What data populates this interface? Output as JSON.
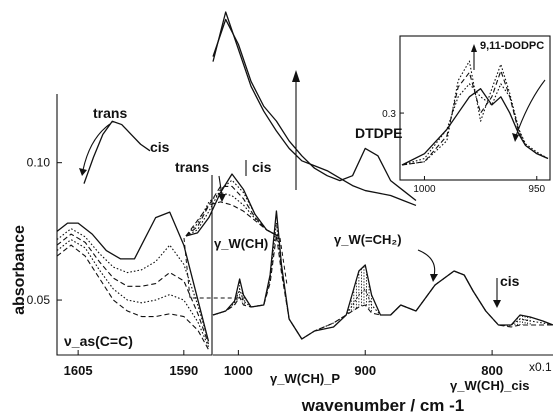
{
  "chart_data": [
    {
      "type": "line",
      "xlabel": "",
      "ylabel": "absorbance",
      "xlim": [
        1608,
        1586
      ],
      "ylim": [
        0.03,
        0.125
      ],
      "x_ticks": [
        1605,
        1590
      ],
      "y_ticks": [
        0.05,
        0.1
      ],
      "y_tick_labels": [
        "0.05",
        "0.10"
      ],
      "series": [
        {
          "x": [
            1608,
            1606.5,
            1605,
            1603,
            1601,
            1599,
            1597,
            1596,
            1594,
            1592,
            1590,
            1588,
            1586.5
          ],
          "values": [
            0.075,
            0.078,
            0.078,
            0.074,
            0.068,
            0.065,
            0.065,
            0.07,
            0.08,
            0.082,
            0.07,
            0.05,
            0.035
          ]
        },
        {
          "x": [
            1608,
            1606,
            1604,
            1602,
            1600,
            1598,
            1596,
            1594,
            1592,
            1590,
            1588,
            1586.5
          ],
          "values": [
            0.072,
            0.076,
            0.073,
            0.067,
            0.062,
            0.06,
            0.061,
            0.064,
            0.07,
            0.063,
            0.048,
            0.035
          ]
        },
        {
          "x": [
            1608,
            1606,
            1604,
            1602,
            1600,
            1598,
            1596,
            1594,
            1592,
            1590,
            1588,
            1586.5
          ],
          "values": [
            0.07,
            0.074,
            0.071,
            0.064,
            0.058,
            0.055,
            0.055,
            0.056,
            0.06,
            0.057,
            0.045,
            0.034
          ]
        },
        {
          "x": [
            1608,
            1606,
            1604,
            1602,
            1600,
            1598,
            1596,
            1594,
            1592,
            1590,
            1588,
            1586.5
          ],
          "values": [
            0.068,
            0.072,
            0.069,
            0.061,
            0.054,
            0.05,
            0.049,
            0.05,
            0.052,
            0.05,
            0.042,
            0.033
          ]
        },
        {
          "x": [
            1608,
            1606,
            1604,
            1602,
            1600,
            1598,
            1596,
            1594,
            1592,
            1590,
            1588,
            1586.5
          ],
          "values": [
            0.066,
            0.07,
            0.066,
            0.058,
            0.05,
            0.046,
            0.044,
            0.044,
            0.045,
            0.044,
            0.039,
            0.032
          ]
        }
      ],
      "annotations": [
        "trans",
        "cis",
        "ν_as(C=C)"
      ],
      "inset": {
        "label": "cis",
        "x": [
          0,
          1,
          2,
          3,
          4,
          5,
          6,
          7
        ],
        "values": [
          0.07,
          0.086,
          0.1,
          0.108,
          0.106,
          0.1,
          0.094,
          0.09
        ]
      }
    },
    {
      "type": "line",
      "xlabel": "wavenumber /   cm -1",
      "ylabel": "absorbance",
      "xlim": [
        1020,
        752
      ],
      "ylim": [
        0.0,
        1.0
      ],
      "x_ticks": [
        1000,
        900,
        800
      ],
      "series": [
        {
          "x": [
            1020,
            1010,
            1003,
            999,
            996,
            990,
            980,
            975,
            970,
            966,
            960,
            950,
            940,
            925,
            915,
            905,
            900,
            895,
            888,
            880,
            872,
            860,
            845,
            830,
            822,
            815,
            805,
            795,
            785,
            778,
            770,
            760,
            752
          ],
          "values": [
            0.2,
            0.22,
            0.27,
            0.38,
            0.3,
            0.24,
            0.25,
            0.4,
            0.72,
            0.45,
            0.18,
            0.08,
            0.12,
            0.14,
            0.2,
            0.42,
            0.45,
            0.3,
            0.2,
            0.2,
            0.25,
            0.22,
            0.35,
            0.42,
            0.4,
            0.32,
            0.22,
            0.15,
            0.15,
            0.2,
            0.19,
            0.17,
            0.15
          ]
        },
        {
          "x": [
            1020,
            1010,
            1003,
            999,
            996,
            990,
            980,
            975,
            970,
            966,
            960,
            950,
            940,
            925,
            915,
            905,
            900,
            895,
            888,
            880,
            872,
            860,
            845,
            830,
            822,
            815,
            805,
            795,
            785,
            778,
            770,
            760,
            752
          ],
          "values": [
            0.2,
            0.22,
            0.26,
            0.33,
            0.27,
            0.24,
            0.25,
            0.38,
            0.66,
            0.43,
            0.18,
            0.08,
            0.12,
            0.16,
            0.2,
            0.3,
            0.33,
            0.25,
            0.2,
            0.2,
            0.25,
            0.22,
            0.35,
            0.42,
            0.4,
            0.32,
            0.22,
            0.15,
            0.15,
            0.18,
            0.17,
            0.16,
            0.15
          ]
        },
        {
          "x": [
            1020,
            1010,
            1003,
            999,
            996,
            990,
            980,
            975,
            970,
            966,
            960,
            950,
            940,
            925,
            915,
            905,
            900,
            895,
            888,
            880,
            872,
            860,
            845,
            830,
            822,
            815,
            805,
            795,
            785,
            778,
            770,
            760,
            752
          ],
          "values": [
            0.2,
            0.22,
            0.25,
            0.29,
            0.25,
            0.24,
            0.25,
            0.36,
            0.6,
            0.41,
            0.18,
            0.08,
            0.12,
            0.16,
            0.2,
            0.24,
            0.25,
            0.21,
            0.2,
            0.2,
            0.25,
            0.22,
            0.35,
            0.42,
            0.4,
            0.32,
            0.22,
            0.15,
            0.14,
            0.15,
            0.15,
            0.15,
            0.15
          ]
        }
      ],
      "annotations": [
        "trans",
        "cis",
        "DTDPE",
        "γ_W(CH)",
        "γ_W(=CH₂)",
        "γ_W(CH)_P",
        "γ_W(CH)_cis",
        "cis",
        "x0.1"
      ],
      "dtdpe_curves": {
        "x": [
          1020,
          1010,
          1000,
          990,
          980,
          970,
          960,
          950,
          940,
          930,
          920,
          910,
          900,
          890,
          880,
          870,
          860
        ],
        "series": [
          {
            "values": [
              0.8,
              1.0,
              0.85,
              0.7,
              0.6,
              0.52,
              0.45,
              0.4,
              0.38,
              0.36,
              0.33,
              0.3,
              0.28,
              0.27,
              0.26,
              0.24,
              0.22
            ]
          },
          {
            "values": [
              0.82,
              0.97,
              0.87,
              0.72,
              0.62,
              0.56,
              0.48,
              0.42,
              0.37,
              0.34,
              0.32,
              0.34,
              0.45,
              0.42,
              0.32,
              0.28,
              0.24
            ]
          }
        ]
      }
    },
    {
      "type": "line",
      "title": "9,11-DODPC",
      "xlim": [
        1010,
        945
      ],
      "ylim": [
        0.26,
        0.345
      ],
      "x_ticks": [
        1000,
        950
      ],
      "y_ticks": [
        0.3
      ],
      "y_tick_labels": [
        "0.3"
      ],
      "series": [
        {
          "x": [
            1010,
            1000,
            990,
            985,
            980,
            975,
            970,
            966,
            962,
            958,
            955,
            950,
            945
          ],
          "values": [
            0.268,
            0.275,
            0.29,
            0.3,
            0.31,
            0.315,
            0.305,
            0.31,
            0.3,
            0.287,
            0.28,
            0.275,
            0.272
          ]
        },
        {
          "x": [
            1010,
            1000,
            990,
            985,
            980,
            975,
            970,
            966,
            962,
            958,
            955,
            950,
            945
          ],
          "values": [
            0.268,
            0.272,
            0.29,
            0.31,
            0.318,
            0.31,
            0.305,
            0.318,
            0.31,
            0.29,
            0.28,
            0.275,
            0.272
          ]
        },
        {
          "x": [
            1010,
            1000,
            990,
            985,
            980,
            975,
            970,
            966,
            962,
            958,
            955,
            950,
            945
          ],
          "values": [
            0.268,
            0.27,
            0.286,
            0.316,
            0.325,
            0.3,
            0.31,
            0.326,
            0.31,
            0.288,
            0.28,
            0.275,
            0.272
          ]
        },
        {
          "x": [
            1010,
            1000,
            990,
            985,
            980,
            975,
            970,
            966,
            962,
            958,
            955,
            950,
            945
          ],
          "values": [
            0.268,
            0.27,
            0.283,
            0.32,
            0.332,
            0.295,
            0.315,
            0.33,
            0.312,
            0.29,
            0.281,
            0.276,
            0.272
          ]
        }
      ]
    }
  ]
}
